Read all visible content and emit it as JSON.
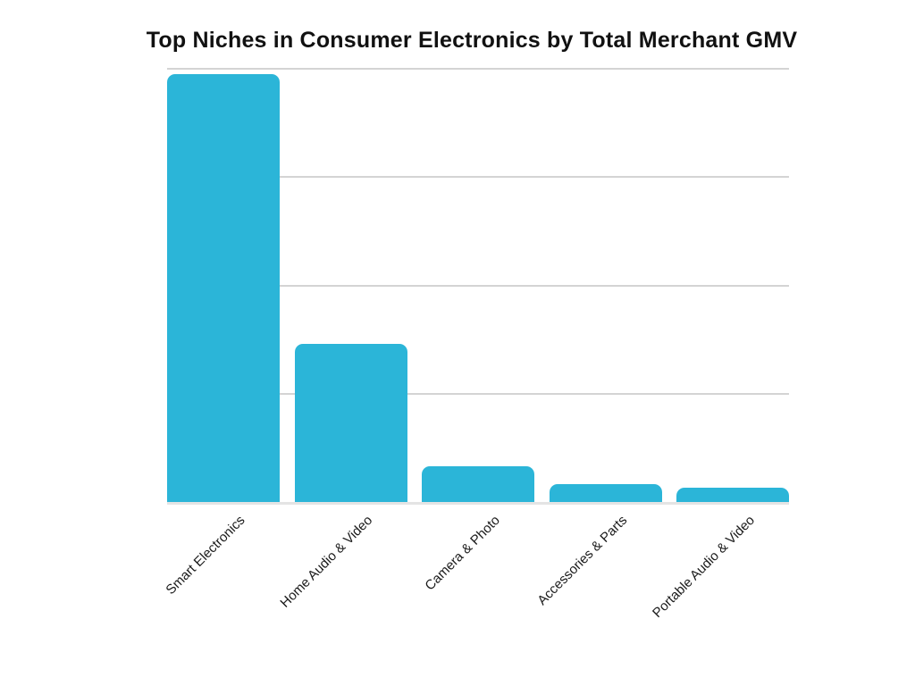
{
  "chart": {
    "title": "Top Niches in Consumer Electronics by Total Merchant GMV"
  },
  "chart_data": {
    "type": "bar",
    "title": "Top Niches in Consumer Electronics by Total Merchant GMV",
    "categories": [
      "Smart Electronics",
      "Home Audio & Video",
      "Camera & Photo",
      "Accessories & Parts",
      "Portable Audio & Video"
    ],
    "values": [
      98.8,
      36.5,
      8.2,
      4.1,
      3.3
    ],
    "value_note": "no numeric axis labels shown in chart; bar heights estimated from gridlines as percent of axis max",
    "xlabel": "",
    "ylabel": "",
    "ylim": [
      0,
      100
    ],
    "gridline_values": [
      100,
      75,
      50,
      25
    ],
    "grid": "horizontal",
    "legend": "none",
    "x_label_rotation_deg": 45,
    "colors": {
      "bar": "#2BB5D8",
      "gridline": "#D4D4D4",
      "baseline": "#E4E4E4",
      "title": "#111111",
      "axis_label": "#1A1A1A",
      "background": "#FFFFFF"
    }
  }
}
